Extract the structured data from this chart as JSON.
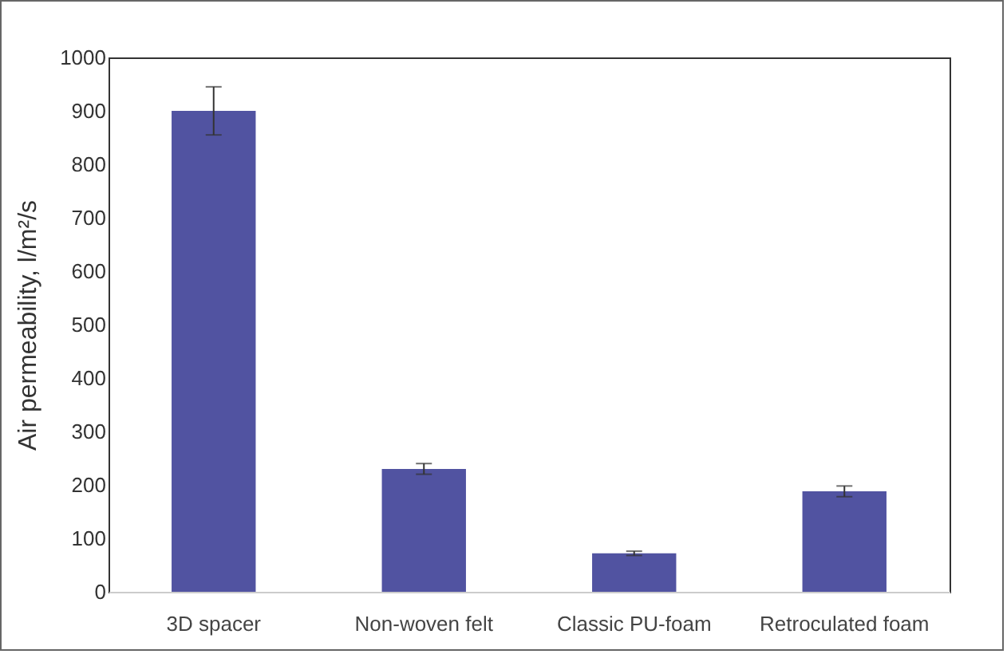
{
  "chart_data": {
    "type": "bar",
    "ylabel": "Air permeability, l/m²/s",
    "categories": [
      "3D spacer",
      "Non-woven felt",
      "Classic PU-foam",
      "Retroculated foam"
    ],
    "values": [
      900,
      230,
      72,
      188
    ],
    "errors": [
      45,
      10,
      4,
      10
    ],
    "color": "#5153a1",
    "ylim": [
      0,
      1000
    ],
    "yticks": [
      0,
      100,
      200,
      300,
      400,
      500,
      600,
      700,
      800,
      900,
      1000
    ],
    "grid": false
  }
}
